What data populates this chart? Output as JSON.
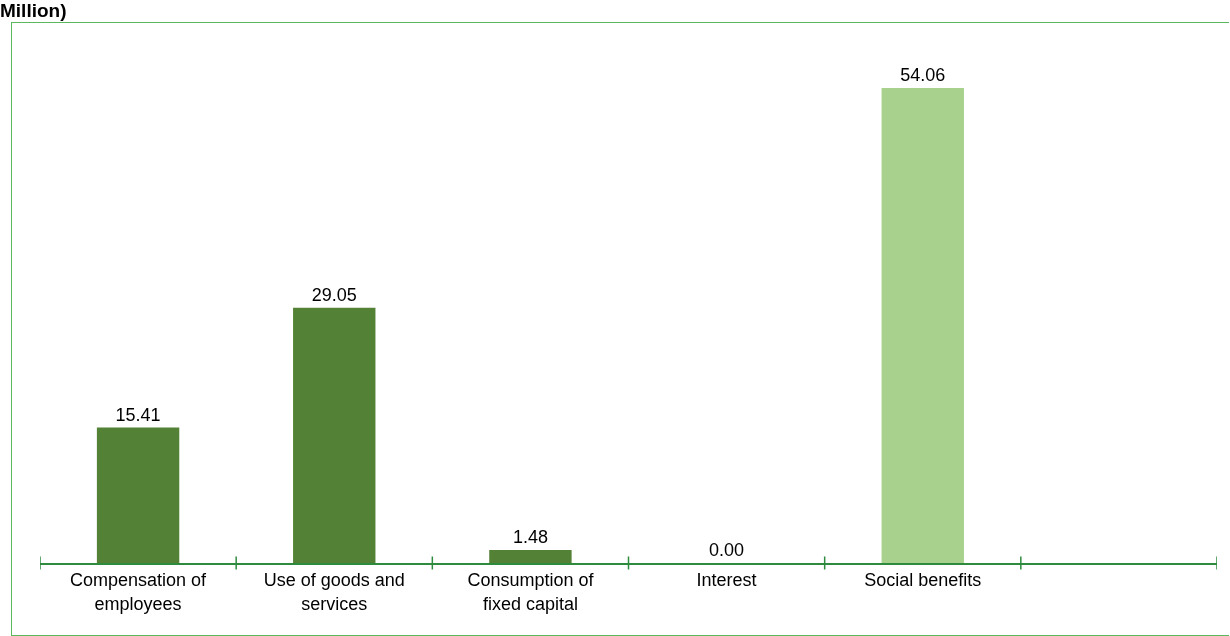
{
  "chart_data": {
    "type": "bar",
    "title": "Million)",
    "categories": [
      "Compensation of employees",
      "Use of goods and services",
      "Consumption of fixed capital",
      "Interest",
      "Social benefits",
      null
    ],
    "values": [
      15.41,
      29.05,
      1.48,
      0.0,
      54.06,
      null
    ],
    "value_labels": [
      "15.41",
      "29.05",
      "1.48",
      "0.00",
      "54.06",
      null
    ],
    "colors": [
      "#538135",
      "#538135",
      "#538135",
      "#538135",
      "#a9d18e",
      null
    ]
  }
}
